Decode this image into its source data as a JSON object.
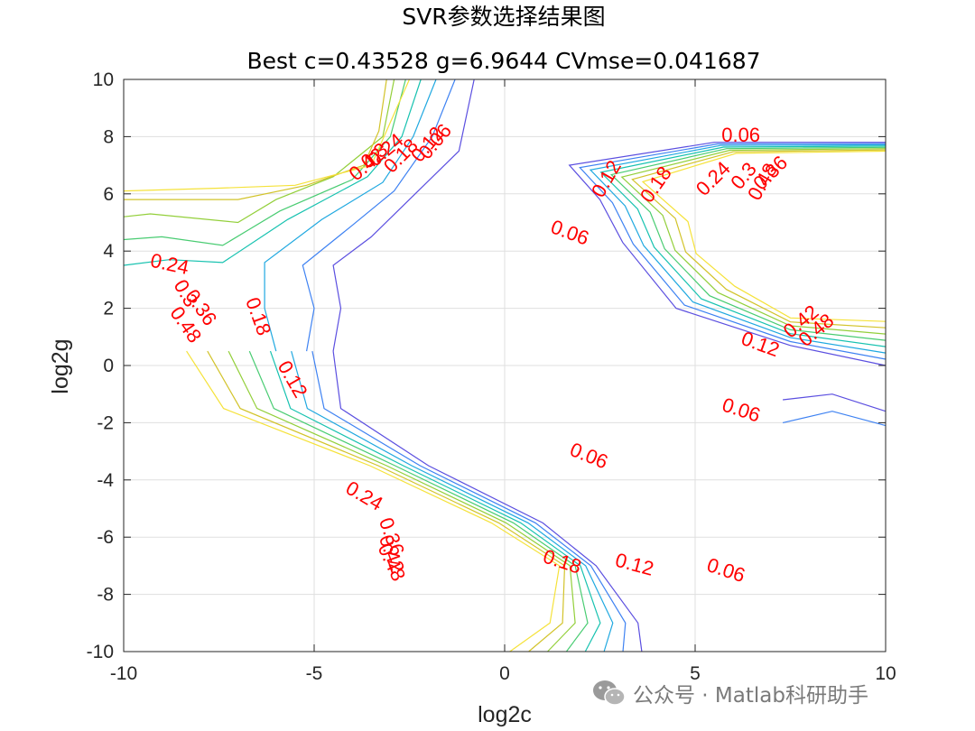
{
  "chart_data": {
    "type": "contour",
    "title": "SVR参数选择结果图",
    "subtitle": "Best c=0.43528 g=6.9644 CVmse=0.041687",
    "xlabel": "log2c",
    "ylabel": "log2g",
    "xlim": [
      -10,
      10
    ],
    "ylim": [
      -10,
      10
    ],
    "x_ticks": [
      "-10",
      "-5",
      "0",
      "5",
      "10"
    ],
    "y_ticks": [
      "10",
      "8",
      "6",
      "4",
      "2",
      "0",
      "-2",
      "-4",
      "-6",
      "-8",
      "-10"
    ],
    "grid": true,
    "levels": [
      0.06,
      0.12,
      0.18,
      0.24,
      0.3,
      0.36,
      0.42,
      0.48
    ],
    "level_colors": [
      "#5b4fe0",
      "#3e82f2",
      "#1fa8e0",
      "#17c2b0",
      "#49cc72",
      "#93cf3a",
      "#d2c32a",
      "#f5e23a"
    ],
    "contours": [
      {
        "level": 0.06,
        "points": [
          [
            -4.5,
            0.5
          ],
          [
            -4.3,
            2
          ],
          [
            -4.5,
            3.5
          ],
          [
            -3.5,
            4.5
          ],
          [
            -2.5,
            5.8
          ],
          [
            -1.2,
            7.5
          ],
          [
            -0.8,
            10
          ]
        ]
      },
      {
        "level": 0.12,
        "points": [
          [
            -5.2,
            0.5
          ],
          [
            -5.0,
            2
          ],
          [
            -5.3,
            3.5
          ],
          [
            -4.0,
            4.9
          ],
          [
            -2.9,
            6.1
          ],
          [
            -1.9,
            8
          ],
          [
            -1.3,
            10
          ]
        ]
      },
      {
        "level": 0.18,
        "points": [
          [
            -6.0,
            0.5
          ],
          [
            -6.3,
            2
          ],
          [
            -6.3,
            3.6
          ],
          [
            -4.8,
            5.1
          ],
          [
            -3.2,
            6.4
          ],
          [
            -2.4,
            8
          ],
          [
            -1.8,
            10
          ]
        ]
      },
      {
        "level": 0.24,
        "points": [
          [
            -10,
            3.5
          ],
          [
            -8.8,
            3.7
          ],
          [
            -7.4,
            3.6
          ],
          [
            -5.7,
            5.1
          ],
          [
            -3.6,
            6.6
          ],
          [
            -2.7,
            8
          ],
          [
            -2.2,
            10
          ]
        ]
      },
      {
        "level": 0.3,
        "points": [
          [
            -10,
            4.4
          ],
          [
            -9.0,
            4.5
          ],
          [
            -7.4,
            4.2
          ],
          [
            -5.9,
            5.4
          ],
          [
            -4.0,
            6.5
          ],
          [
            -3.0,
            8
          ],
          [
            -2.6,
            10
          ]
        ]
      },
      {
        "level": 0.36,
        "points": [
          [
            -10,
            5.2
          ],
          [
            -9.3,
            5.3
          ],
          [
            -7.0,
            5.0
          ],
          [
            -6.0,
            5.8
          ],
          [
            -4.5,
            6.6
          ],
          [
            -3.2,
            8
          ],
          [
            -2.9,
            10
          ]
        ]
      },
      {
        "level": 0.42,
        "points": [
          [
            -10,
            5.8
          ],
          [
            -9.5,
            5.8
          ],
          [
            -7.0,
            5.8
          ],
          [
            -5.2,
            6.3
          ],
          [
            -3.7,
            7.0
          ],
          [
            -3.3,
            8.2
          ],
          [
            -3.1,
            10
          ]
        ]
      },
      {
        "level": 0.48,
        "points": [
          [
            -10,
            6.1
          ],
          [
            -7.5,
            6.2
          ],
          [
            -5.5,
            6.3
          ],
          [
            -3.5,
            7.0
          ],
          [
            -3.0,
            8.5
          ],
          [
            -2.5,
            10
          ]
        ]
      }
    ],
    "contour_labels": [
      "0.06",
      "0.12",
      "0.18",
      "0.24",
      "0.3",
      "0.36",
      "0.42",
      "0.48"
    ]
  },
  "watermark": {
    "text": "公众号 · Matlab科研助手"
  },
  "colors": {
    "axes": "#262626",
    "grid": "#dfdfdf",
    "label": "#ff0000"
  }
}
